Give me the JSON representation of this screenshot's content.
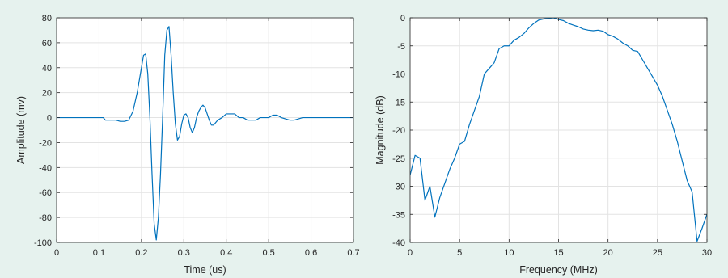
{
  "chart_data": [
    {
      "type": "line",
      "title": "",
      "xlabel": "Time (us)",
      "ylabel": "Amplitude (mv)",
      "xlim": [
        0,
        0.7
      ],
      "ylim": [
        -100,
        80
      ],
      "xticks": [
        0,
        0.1,
        0.2,
        0.3,
        0.4,
        0.5,
        0.6,
        0.7
      ],
      "xtick_labels": [
        "0",
        "0.1",
        "0.2",
        "0.3",
        "0.4",
        "0.5",
        "0.6",
        "0.7"
      ],
      "yticks": [
        80,
        60,
        40,
        20,
        0,
        -20,
        -40,
        -60,
        -80,
        -100
      ],
      "ytick_labels": [
        "80",
        "60",
        "40",
        "20",
        "0",
        "-20",
        "-40",
        "-60",
        "-80",
        "-100"
      ],
      "grid": true,
      "series": [
        {
          "color": "#0072bd",
          "x": [
            0,
            0.05,
            0.11,
            0.115,
            0.14,
            0.15,
            0.16,
            0.17,
            0.18,
            0.19,
            0.2,
            0.205,
            0.21,
            0.215,
            0.22,
            0.225,
            0.23,
            0.235,
            0.24,
            0.245,
            0.25,
            0.255,
            0.26,
            0.265,
            0.27,
            0.275,
            0.28,
            0.285,
            0.29,
            0.295,
            0.3,
            0.305,
            0.31,
            0.315,
            0.32,
            0.325,
            0.33,
            0.335,
            0.34,
            0.345,
            0.35,
            0.355,
            0.36,
            0.365,
            0.37,
            0.375,
            0.38,
            0.39,
            0.4,
            0.42,
            0.43,
            0.44,
            0.45,
            0.47,
            0.48,
            0.49,
            0.5,
            0.51,
            0.52,
            0.53,
            0.55,
            0.56,
            0.58,
            0.6,
            0.65,
            0.7
          ],
          "y": [
            0,
            0,
            0,
            -2,
            -2,
            -3,
            -3,
            -2,
            5,
            20,
            40,
            50,
            51,
            35,
            0,
            -45,
            -85,
            -98,
            -80,
            -45,
            0,
            50,
            70,
            73,
            50,
            20,
            -5,
            -18,
            -15,
            -5,
            2,
            3,
            0,
            -8,
            -12,
            -8,
            0,
            5,
            8,
            10,
            8,
            3,
            -2,
            -6,
            -6,
            -4,
            -2,
            0,
            3,
            3,
            0,
            0,
            -2,
            -2,
            0,
            0,
            0,
            2,
            2,
            0,
            -2,
            -2,
            0,
            0,
            0,
            0
          ]
        }
      ]
    },
    {
      "type": "line",
      "title": "",
      "xlabel": "Frequency (MHz)",
      "ylabel": "Magnitude (dB)",
      "xlim": [
        0,
        30
      ],
      "ylim": [
        -40,
        0
      ],
      "xticks": [
        0,
        5,
        10,
        15,
        20,
        25,
        30
      ],
      "xtick_labels": [
        "0",
        "5",
        "10",
        "15",
        "20",
        "25",
        "30"
      ],
      "yticks": [
        0,
        -5,
        -10,
        -15,
        -20,
        -25,
        -30,
        -35,
        -40
      ],
      "ytick_labels": [
        "0",
        "-5",
        "-10",
        "-15",
        "-20",
        "-25",
        "-30",
        "-35",
        "-40"
      ],
      "grid": true,
      "series": [
        {
          "color": "#0072bd",
          "x": [
            0,
            0.5,
            1,
            1.5,
            2,
            2.5,
            3,
            4,
            4.5,
            5,
            5.5,
            6,
            7,
            7.5,
            8,
            8.5,
            9,
            9.5,
            10,
            10.5,
            11,
            11.5,
            12,
            12.5,
            13,
            13.5,
            14,
            14.5,
            15,
            15.5,
            16,
            16.5,
            17,
            17.5,
            18,
            18.5,
            19,
            19.5,
            20,
            20.5,
            21,
            21.5,
            22,
            22.5,
            23,
            23.5,
            24,
            24.5,
            25,
            25.5,
            26,
            26.5,
            27,
            27.5,
            28,
            28.5,
            29,
            29.5,
            30
          ],
          "y": [
            -28,
            -24.5,
            -25,
            -32.5,
            -30,
            -35.5,
            -32,
            -27,
            -25,
            -22.5,
            -22,
            -19,
            -14,
            -10,
            -9,
            -8,
            -5.5,
            -5,
            -5,
            -4,
            -3.5,
            -2.8,
            -1.8,
            -1,
            -0.4,
            -0.2,
            -0.1,
            0,
            -0.3,
            -0.5,
            -1,
            -1.3,
            -1.6,
            -2,
            -2.2,
            -2.3,
            -2.2,
            -2.4,
            -3,
            -3.3,
            -3.8,
            -4.5,
            -5,
            -5.8,
            -6,
            -7.5,
            -9,
            -10.5,
            -12,
            -14,
            -16.5,
            -19,
            -22,
            -25.5,
            -29,
            -31,
            -39.8,
            -37.5,
            -35
          ]
        }
      ]
    }
  ]
}
